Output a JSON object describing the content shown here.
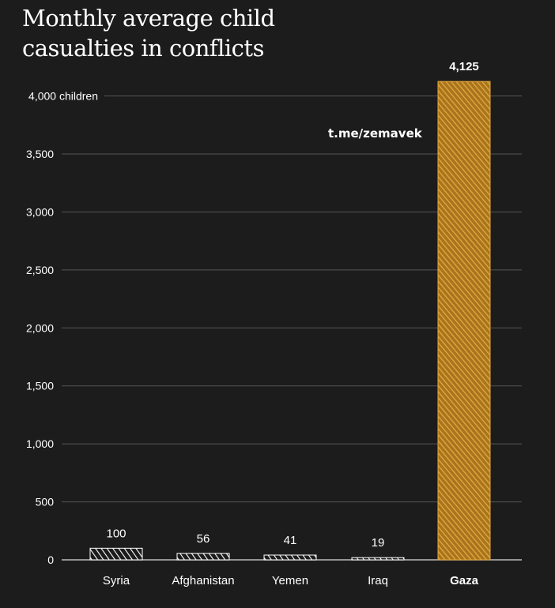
{
  "watermark": "t.me/zemavek",
  "chart_data": {
    "type": "bar",
    "title": "Monthly average child casualties in conflicts",
    "categories": [
      "Syria",
      "Afghanistan",
      "Yemen",
      "Iraq",
      "Gaza"
    ],
    "values": [
      100,
      56,
      41,
      19,
      4125
    ],
    "value_labels": [
      "100",
      "56",
      "41",
      "19",
      "4,125"
    ],
    "highlight": "Gaza",
    "ylim": [
      0,
      4200
    ],
    "yticks": [
      0,
      500,
      1000,
      1500,
      2000,
      2500,
      3000,
      3500,
      4000
    ],
    "ytick_labels": [
      "0",
      "500",
      "1,000",
      "1,500",
      "2,000",
      "2,500",
      "3,000",
      "3,500",
      "4,000 children"
    ],
    "grid": true,
    "colors": {
      "default": "#ffffff",
      "highlight": "#e5a93a",
      "background": "#1c1c1c",
      "grid": "#555555"
    }
  }
}
